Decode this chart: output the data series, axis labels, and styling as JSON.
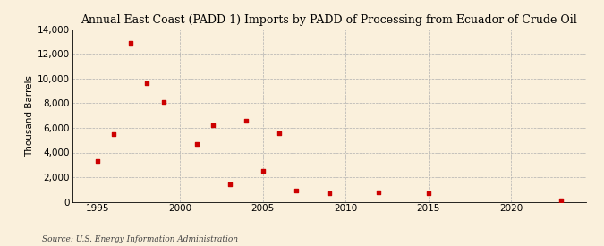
{
  "title": "Annual East Coast (PADD 1) Imports by PADD of Processing from Ecuador of Crude Oil",
  "ylabel": "Thousand Barrels",
  "source": "Source: U.S. Energy Information Administration",
  "background_color": "#faf0dc",
  "marker_color": "#cc0000",
  "xlim": [
    1993.5,
    2024.5
  ],
  "ylim": [
    0,
    14000
  ],
  "yticks": [
    0,
    2000,
    4000,
    6000,
    8000,
    10000,
    12000,
    14000
  ],
  "xticks": [
    1995,
    2000,
    2005,
    2010,
    2015,
    2020
  ],
  "years": [
    1995,
    1996,
    1997,
    1998,
    1999,
    2001,
    2002,
    2003,
    2004,
    2005,
    2006,
    2007,
    2009,
    2012,
    2015,
    2023
  ],
  "values": [
    3300,
    5500,
    12900,
    9600,
    8100,
    4700,
    6200,
    1400,
    6600,
    2500,
    5600,
    900,
    700,
    800,
    700,
    100
  ]
}
